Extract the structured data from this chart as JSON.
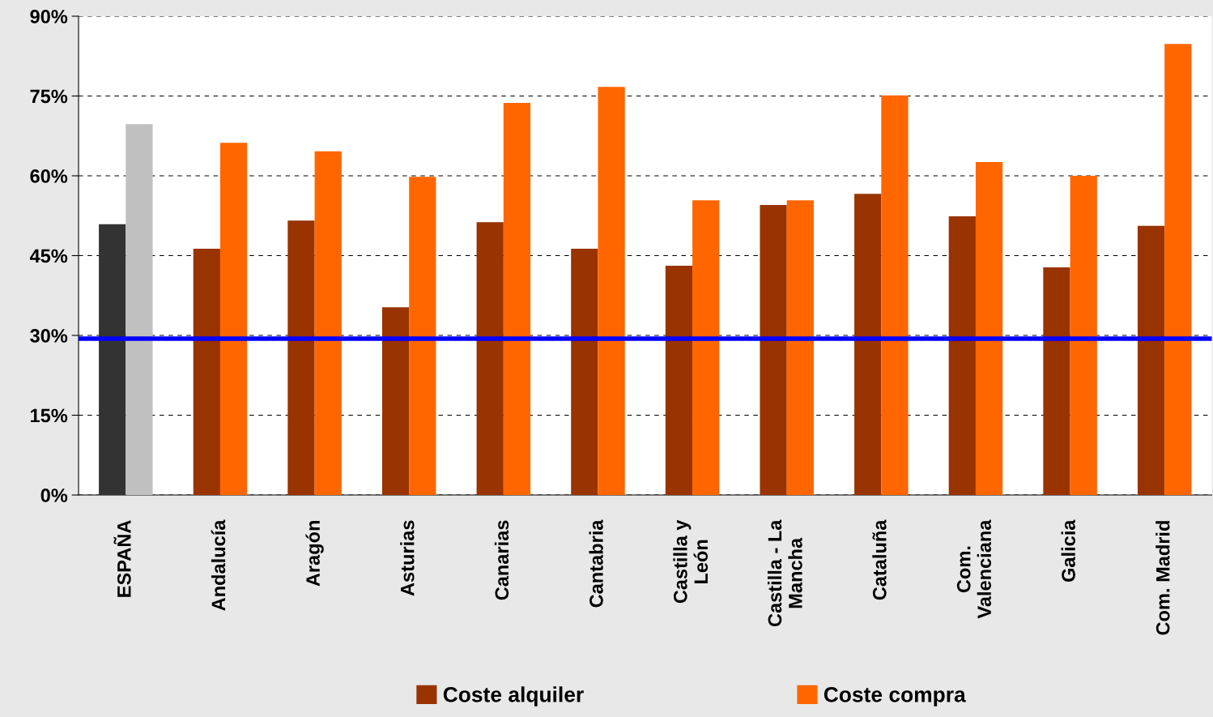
{
  "chart_data": {
    "type": "bar",
    "categories": [
      "ESPAÑA",
      "Andalucía",
      "Aragón",
      "Asturias",
      "Canarias",
      "Cantabria",
      "Castilla y\nLeón",
      "Castilla - La\nMancha",
      "Cataluña",
      "Com.\nValenciana",
      "Galicia",
      "Com. Madrid"
    ],
    "series": [
      {
        "name": "Coste alquiler",
        "color": "#993300",
        "colors": [
          "#333333",
          "#993300",
          "#993300",
          "#993300",
          "#993300",
          "#993300",
          "#993300",
          "#993300",
          "#993300",
          "#993300",
          "#993300",
          "#993300"
        ],
        "values": [
          50.9,
          46.3,
          51.6,
          35.3,
          51.3,
          46.3,
          43.1,
          54.5,
          56.6,
          52.4,
          42.8,
          50.6
        ]
      },
      {
        "name": "Coste compra",
        "color": "#ff6600",
        "colors": [
          "#c0c0c0",
          "#ff6600",
          "#ff6600",
          "#ff6600",
          "#ff6600",
          "#ff6600",
          "#ff6600",
          "#ff6600",
          "#ff6600",
          "#ff6600",
          "#ff6600",
          "#ff6600"
        ],
        "values": [
          69.7,
          66.2,
          64.6,
          59.8,
          73.7,
          76.7,
          55.4,
          55.4,
          75.1,
          62.6,
          60.0,
          84.8
        ]
      }
    ],
    "ylim": [
      0,
      90
    ],
    "yticks": [
      {
        "value": 0,
        "label": "0%"
      },
      {
        "value": 15,
        "label": "15%"
      },
      {
        "value": 30,
        "label": "30%"
      },
      {
        "value": 45,
        "label": "45%"
      },
      {
        "value": 60,
        "label": "60%"
      },
      {
        "value": 75,
        "label": "75%"
      },
      {
        "value": 90,
        "label": "90%"
      }
    ],
    "ref_lines": [
      {
        "axis": "y",
        "value": 29.4,
        "color": "#0000ff",
        "line_style": "solid"
      }
    ],
    "grid": "y",
    "legend": "bottom"
  }
}
